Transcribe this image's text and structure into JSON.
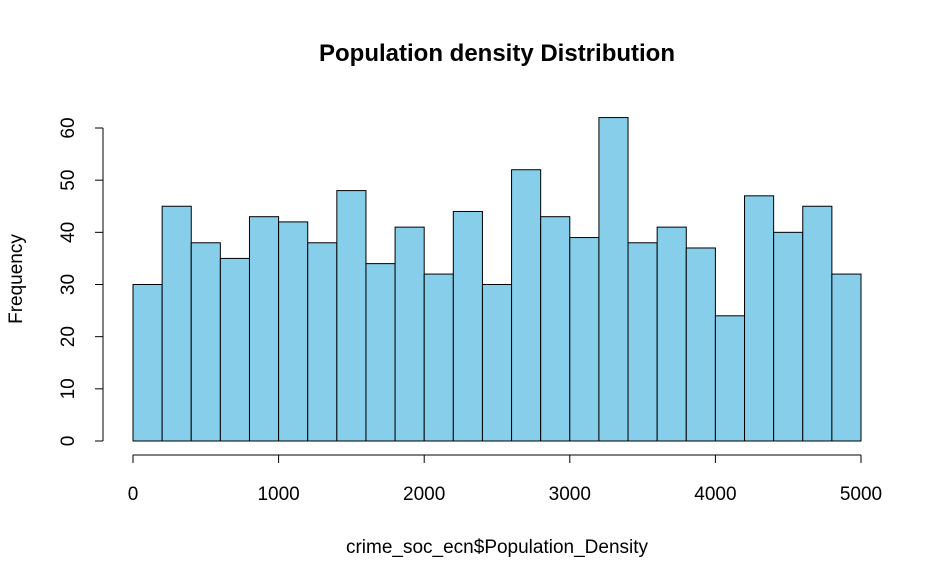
{
  "chart_data": {
    "type": "bar",
    "subtype": "histogram",
    "title": "Population density Distribution",
    "xlabel": "crime_soc_ecn$Population_Density",
    "ylabel": "Frequency",
    "bin_width": 200,
    "bin_start": 0,
    "bin_end": 5000,
    "values": [
      30,
      45,
      38,
      35,
      43,
      42,
      38,
      48,
      34,
      41,
      32,
      44,
      30,
      52,
      43,
      39,
      62,
      38,
      41,
      37,
      24,
      47,
      40,
      45,
      32
    ],
    "xlim": [
      0,
      5000
    ],
    "ylim": [
      0,
      62
    ],
    "xticks": [
      0,
      1000,
      2000,
      3000,
      4000,
      5000
    ],
    "yticks": [
      0,
      10,
      20,
      30,
      40,
      50,
      60
    ],
    "bar_color": "#87CEEB",
    "bar_edge_color": "#000000",
    "grid": false,
    "legend": false
  }
}
